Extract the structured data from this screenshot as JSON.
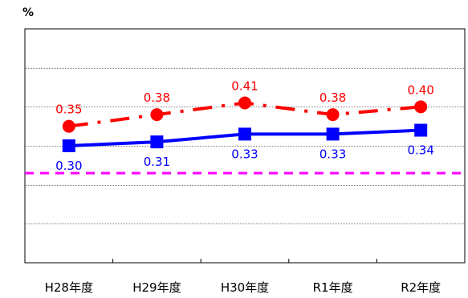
{
  "chart_data": {
    "type": "line",
    "unit_label": "%",
    "categories": [
      "H28年度",
      "H29年度",
      "H30年度",
      "R1年度",
      "R2年度"
    ],
    "ylim": [
      0,
      0.6
    ],
    "grid": true,
    "series": [
      {
        "values": [
          0.35,
          0.38,
          0.41,
          0.38,
          0.4
        ],
        "color": "#ff0000",
        "marker": "circle",
        "line_style": "dash-dot"
      },
      {
        "values": [
          0.3,
          0.31,
          0.33,
          0.33,
          0.34
        ],
        "color": "#0000ff",
        "marker": "square",
        "line_style": "solid"
      }
    ],
    "reference_line": {
      "value": 0.23,
      "color": "#ff00ff",
      "line_style": "dashed"
    }
  }
}
